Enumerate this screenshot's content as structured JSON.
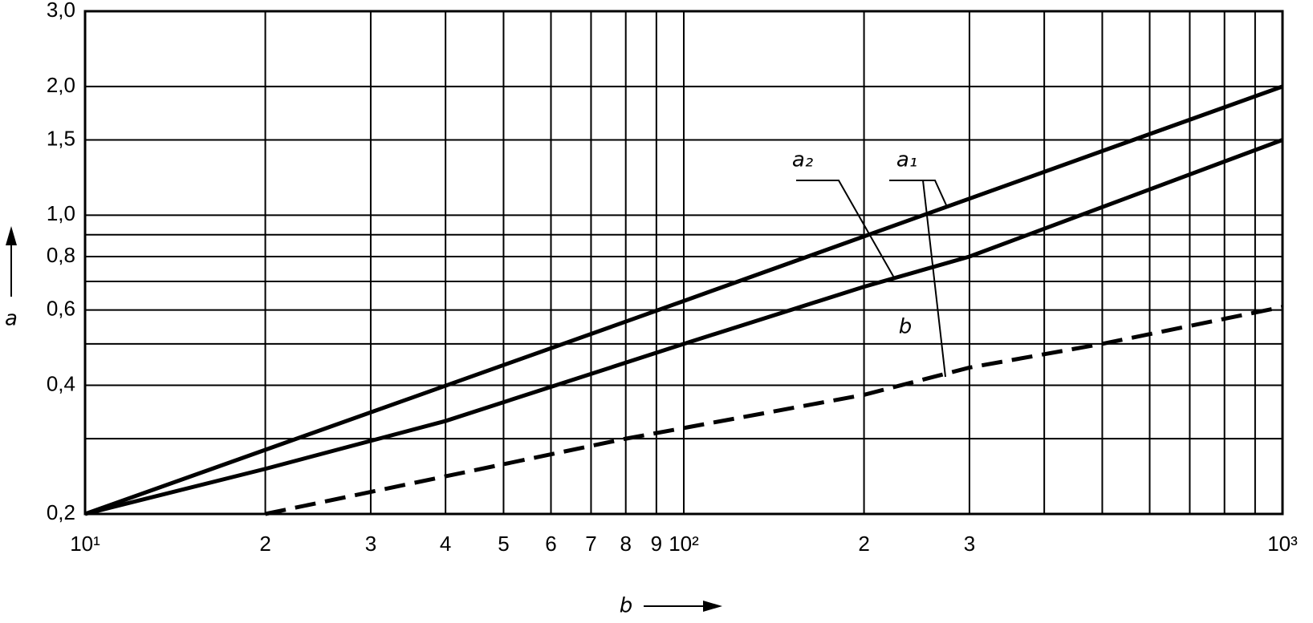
{
  "chart_data": {
    "type": "line",
    "xlabel": "b",
    "ylabel": "a",
    "xscale": "log",
    "yscale": "log",
    "grid": true,
    "xlim": [
      10,
      1000
    ],
    "ylim": [
      0.2,
      3.0
    ],
    "xticks": [
      {
        "value": 10,
        "label": "10¹"
      },
      {
        "value": 20,
        "label": "2"
      },
      {
        "value": 30,
        "label": "3"
      },
      {
        "value": 40,
        "label": "4"
      },
      {
        "value": 50,
        "label": "5"
      },
      {
        "value": 60,
        "label": "6"
      },
      {
        "value": 70,
        "label": "7"
      },
      {
        "value": 80,
        "label": "8"
      },
      {
        "value": 90,
        "label": "9"
      },
      {
        "value": 100,
        "label": "10²"
      },
      {
        "value": 200,
        "label": "2"
      },
      {
        "value": 300,
        "label": "3"
      },
      {
        "value": 1000,
        "label": "10³"
      }
    ],
    "xgrid": [
      400,
      500,
      600,
      700,
      800,
      900
    ],
    "yticks": [
      {
        "value": 0.2,
        "label": "0,2"
      },
      {
        "value": 0.4,
        "label": "0,4"
      },
      {
        "value": 0.6,
        "label": "0,6"
      },
      {
        "value": 0.8,
        "label": "0,8"
      },
      {
        "value": 1.0,
        "label": "1,0"
      },
      {
        "value": 1.5,
        "label": "1,5"
      },
      {
        "value": 2.0,
        "label": "2,0"
      },
      {
        "value": 3.0,
        "label": "3,0"
      }
    ],
    "ygrid": [
      0.3,
      0.5,
      0.7,
      0.9
    ],
    "series": [
      {
        "name": "a₂",
        "color": "#000000",
        "dashed": false,
        "x": [
          10,
          20,
          40,
          100,
          200,
          300,
          1000
        ],
        "values": [
          0.2,
          0.255,
          0.33,
          0.5,
          0.68,
          0.8,
          1.5
        ]
      },
      {
        "name": "a₁",
        "color": "#000000",
        "dashed": false,
        "x": [
          10,
          100,
          1000
        ],
        "values": [
          0.2,
          0.63,
          2.0
        ]
      },
      {
        "name": "b",
        "color": "#000000",
        "dashed": true,
        "x": [
          20,
          80,
          200,
          300,
          500,
          1000
        ],
        "values": [
          0.2,
          0.3,
          0.38,
          0.44,
          0.5,
          0.61
        ]
      }
    ]
  }
}
